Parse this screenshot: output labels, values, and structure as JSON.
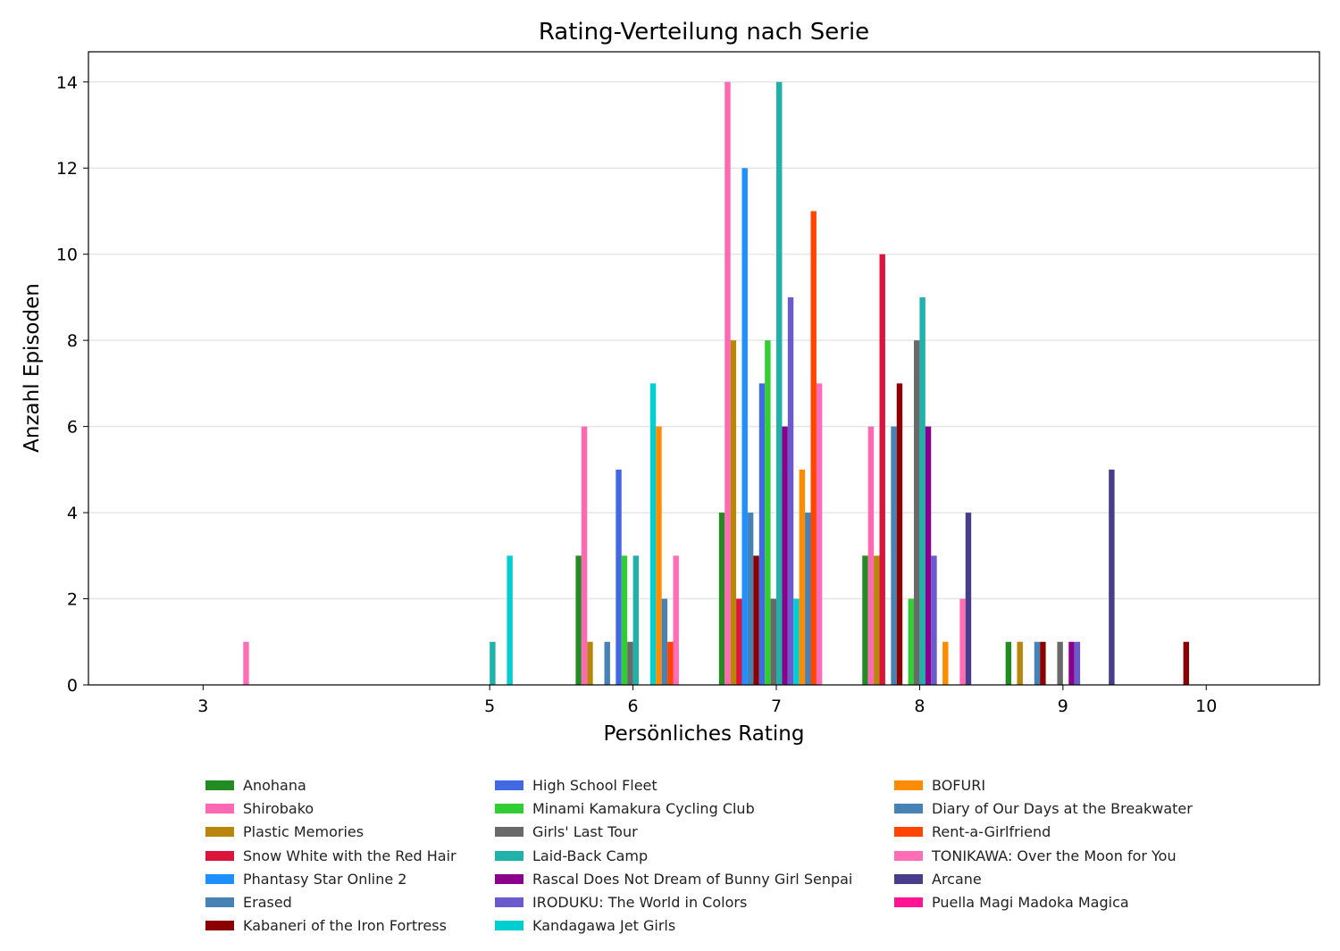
{
  "chart_data": {
    "type": "bar",
    "title": "Rating-Verteilung nach Serie",
    "xlabel": "Persönliches Rating",
    "ylabel": "Anzahl Episoden",
    "categories": [
      3,
      5,
      6,
      7,
      8,
      9,
      10
    ],
    "xlim": [
      2.2,
      10.79
    ],
    "ylim": [
      0,
      14.7
    ],
    "yticks": [
      0,
      2,
      4,
      6,
      8,
      10,
      12,
      14
    ],
    "grid": "horizontal",
    "legend_placement": "bottom",
    "series": [
      {
        "name": "Anohana",
        "color": "#228B22",
        "values": [
          0,
          0,
          3,
          4,
          3,
          1,
          0
        ]
      },
      {
        "name": "Shirobako",
        "color": "#FF69B4",
        "values": [
          0,
          0,
          6,
          14,
          6,
          0,
          0
        ]
      },
      {
        "name": "Plastic Memories",
        "color": "#B8860B",
        "values": [
          0,
          0,
          1,
          8,
          3,
          1,
          0
        ]
      },
      {
        "name": "Snow White with the Red Hair",
        "color": "#DC143C",
        "values": [
          0,
          0,
          0,
          2,
          10,
          0,
          0
        ]
      },
      {
        "name": "Phantasy Star Online 2",
        "color": "#1E90FF",
        "values": [
          0,
          0,
          0,
          12,
          0,
          0,
          0
        ]
      },
      {
        "name": "Erased",
        "color": "#4682B4",
        "values": [
          0,
          0,
          1,
          4,
          6,
          1,
          0
        ]
      },
      {
        "name": "Kabaneri of the Iron Fortress",
        "color": "#8B0000",
        "values": [
          0,
          0,
          0,
          3,
          7,
          1,
          1
        ]
      },
      {
        "name": "High School Fleet",
        "color": "#4169E1",
        "values": [
          0,
          0,
          5,
          7,
          0,
          0,
          0
        ]
      },
      {
        "name": "Minami Kamakura Cycling Club",
        "color": "#32CD32",
        "values": [
          0,
          0,
          3,
          8,
          2,
          0,
          0
        ]
      },
      {
        "name": "Girls' Last Tour",
        "color": "#696969",
        "values": [
          0,
          0,
          1,
          2,
          8,
          1,
          0
        ]
      },
      {
        "name": "Laid-Back Camp",
        "color": "#20B2AA",
        "values": [
          0,
          1,
          3,
          14,
          9,
          0,
          0
        ]
      },
      {
        "name": "Rascal Does Not Dream of Bunny Girl Senpai",
        "color": "#8B008B",
        "values": [
          0,
          0,
          0,
          6,
          6,
          1,
          0
        ]
      },
      {
        "name": "IRODUKU: The World in Colors",
        "color": "#6A5ACD",
        "values": [
          0,
          0,
          0,
          9,
          3,
          1,
          0
        ]
      },
      {
        "name": "Kandagawa Jet Girls",
        "color": "#00CED1",
        "values": [
          0,
          3,
          7,
          2,
          0,
          0,
          0
        ]
      },
      {
        "name": "BOFURI",
        "color": "#FF8C00",
        "values": [
          0,
          0,
          6,
          5,
          1,
          0,
          0
        ]
      },
      {
        "name": "Diary of Our Days at the Breakwater",
        "color": "#4682B4",
        "values": [
          0,
          0,
          2,
          4,
          0,
          0,
          0
        ]
      },
      {
        "name": "Rent-a-Girlfriend",
        "color": "#FF4500",
        "values": [
          0,
          0,
          1,
          11,
          0,
          0,
          0
        ]
      },
      {
        "name": "TONIKAWA: Over the Moon for You",
        "color": "#FF6EB4",
        "values": [
          1,
          0,
          3,
          7,
          2,
          0,
          0
        ]
      },
      {
        "name": "Arcane",
        "color": "#483D8B",
        "values": [
          0,
          0,
          0,
          0,
          4,
          5,
          0
        ]
      },
      {
        "name": "Puella Magi Madoka Magica",
        "color": "#FF1493",
        "values": [
          0,
          0,
          0,
          0,
          0,
          0,
          0
        ]
      }
    ]
  }
}
